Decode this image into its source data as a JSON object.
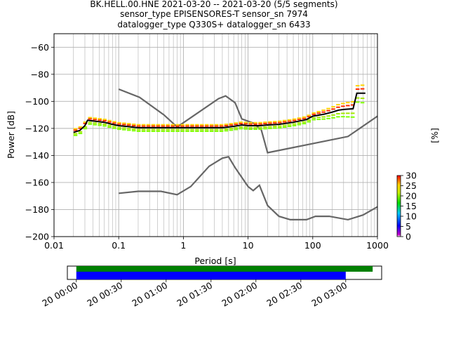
{
  "title_lines": [
    "BK.HELL.00.HNE   2021-03-20 -- 2021-03-20  (5/5 segments)",
    "sensor_type EPISENSORES-T sensor_sn 7974",
    "datalogger_type Q330S+ datalogger_sn 6433"
  ],
  "chart_data": {
    "type": "line",
    "xscale": "log",
    "xlabel": "Period [s]",
    "ylabel": "Power [dB]",
    "xlim": [
      0.01,
      1000
    ],
    "ylim": [
      -200,
      -50
    ],
    "xticks": [
      {
        "v": 0.01,
        "label": "0.01"
      },
      {
        "v": 0.1,
        "label": "0.1"
      },
      {
        "v": 1,
        "label": "1"
      },
      {
        "v": 10,
        "label": "10"
      },
      {
        "v": 100,
        "label": "100"
      },
      {
        "v": 1000,
        "label": "1000"
      }
    ],
    "yticks": [
      {
        "v": -60,
        "label": "−60"
      },
      {
        "v": -80,
        "label": "−80"
      },
      {
        "v": -100,
        "label": "−100"
      },
      {
        "v": -120,
        "label": "−120"
      },
      {
        "v": -140,
        "label": "−140"
      },
      {
        "v": -160,
        "label": "−160"
      },
      {
        "v": -180,
        "label": "−180"
      },
      {
        "v": -200,
        "label": "−200"
      }
    ],
    "grid": true,
    "noise_models": [
      {
        "color": "#666666",
        "points": [
          [
            0.1,
            -91
          ],
          [
            0.21,
            -97
          ],
          [
            0.5,
            -110
          ],
          [
            0.8,
            -119
          ],
          [
            3.5,
            -98
          ],
          [
            4.5,
            -96
          ],
          [
            6.3,
            -101
          ],
          [
            8,
            -113
          ],
          [
            12,
            -116
          ],
          [
            16,
            -121
          ],
          [
            20,
            -138
          ],
          [
            350,
            -126
          ],
          [
            1000,
            -111
          ]
        ]
      },
      {
        "color": "#666666",
        "points": [
          [
            0.1,
            -168
          ],
          [
            0.2,
            -166.5
          ],
          [
            0.45,
            -166.5
          ],
          [
            0.8,
            -169
          ],
          [
            1.3,
            -163
          ],
          [
            2.5,
            -148
          ],
          [
            4,
            -142
          ],
          [
            5,
            -141
          ],
          [
            6.3,
            -149
          ],
          [
            10,
            -163
          ],
          [
            12,
            -166
          ],
          [
            15,
            -162
          ],
          [
            20,
            -177
          ],
          [
            30,
            -185
          ],
          [
            45,
            -187.5
          ],
          [
            80,
            -187.5
          ],
          [
            110,
            -185
          ],
          [
            180,
            -185
          ],
          [
            350,
            -187.5
          ],
          [
            600,
            -184
          ],
          [
            1000,
            -178
          ]
        ]
      }
    ],
    "mean_psd": {
      "color": "#000000",
      "points": [
        [
          0.02,
          -123
        ],
        [
          0.025,
          -121.5
        ],
        [
          0.03,
          -118
        ],
        [
          0.033,
          -114
        ],
        [
          0.04,
          -114.5
        ],
        [
          0.06,
          -115.5
        ],
        [
          0.08,
          -117
        ],
        [
          0.1,
          -118
        ],
        [
          0.13,
          -118.5
        ],
        [
          0.2,
          -119.5
        ],
        [
          1,
          -119.5
        ],
        [
          2,
          -119.5
        ],
        [
          4,
          -119.5
        ],
        [
          6,
          -118.5
        ],
        [
          8,
          -117.5
        ],
        [
          10,
          -118
        ],
        [
          15,
          -118
        ],
        [
          20,
          -117.5
        ],
        [
          30,
          -117
        ],
        [
          50,
          -115.5
        ],
        [
          80,
          -113.5
        ],
        [
          100,
          -111
        ],
        [
          150,
          -109.5
        ],
        [
          200,
          -108
        ],
        [
          250,
          -106.5
        ],
        [
          300,
          -106
        ],
        [
          420,
          -105.5
        ],
        [
          480,
          -94
        ],
        [
          650,
          -94
        ]
      ]
    },
    "histogram_levels": [
      {
        "color": "#ff2a00",
        "offset": 1.2
      },
      {
        "color": "#a3e800",
        "offset": -1.4
      },
      {
        "color": "#7fff00",
        "offset": -2.6
      },
      {
        "color": "#ffd400",
        "offset": 2.2
      }
    ],
    "colorbar": {
      "label": "[%]",
      "range": [
        0,
        30
      ],
      "ticks": [
        {
          "v": 0,
          "label": "0"
        },
        {
          "v": 5,
          "label": "5"
        },
        {
          "v": 10,
          "label": "10"
        },
        {
          "v": 15,
          "label": "15"
        },
        {
          "v": 20,
          "label": "20"
        },
        {
          "v": 25,
          "label": "25"
        },
        {
          "v": 30,
          "label": "30"
        }
      ]
    },
    "coverage": {
      "xlim_hours": [
        -0.1,
        3.4
      ],
      "ticks": [
        {
          "h": 0,
          "label": "20 00:00"
        },
        {
          "h": 0.5,
          "label": "20 00:30"
        },
        {
          "h": 1,
          "label": "20 01:00"
        },
        {
          "h": 1.5,
          "label": "20 01:30"
        },
        {
          "h": 2,
          "label": "20 02:00"
        },
        {
          "h": 2.5,
          "label": "20 02:30"
        },
        {
          "h": 3,
          "label": "20 03:00"
        }
      ],
      "green_bar": {
        "start_h": 0,
        "end_h": 3.3,
        "color": "#008000"
      },
      "blue_bar": {
        "start_h": 0,
        "end_h": 3.0,
        "color": "#0000ff"
      }
    }
  }
}
